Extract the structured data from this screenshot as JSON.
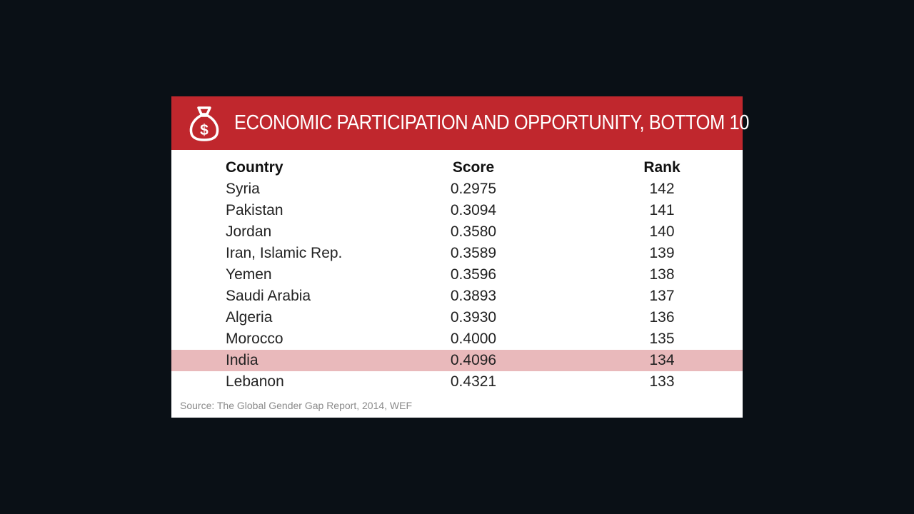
{
  "header": {
    "title": "ECONOMIC PARTICIPATION AND OPPORTUNITY, BOTTOM 10",
    "icon": "money-bag-dollar-icon",
    "background_color": "#c0272d"
  },
  "table": {
    "columns": [
      "Country",
      "Score",
      "Rank"
    ],
    "rows": [
      {
        "country": "Syria",
        "score": "0.2975",
        "rank": "142"
      },
      {
        "country": "Pakistan",
        "score": "0.3094",
        "rank": "141"
      },
      {
        "country": "Jordan",
        "score": "0.3580",
        "rank": "140"
      },
      {
        "country": "Iran, Islamic Rep.",
        "score": "0.3589",
        "rank": "139"
      },
      {
        "country": "Yemen",
        "score": "0.3596",
        "rank": "138"
      },
      {
        "country": "Saudi Arabia",
        "score": "0.3893",
        "rank": "137"
      },
      {
        "country": "Algeria",
        "score": "0.3930",
        "rank": "136"
      },
      {
        "country": "Morocco",
        "score": "0.4000",
        "rank": "135"
      },
      {
        "country": "India",
        "score": "0.4096",
        "rank": "134",
        "highlighted": true
      },
      {
        "country": "Lebanon",
        "score": "0.4321",
        "rank": "133"
      }
    ],
    "highlight_color": "#e9b9bb"
  },
  "source": "Source: The Global Gender Gap Report, 2014, WEF",
  "chart_data": {
    "type": "table",
    "title": "ECONOMIC PARTICIPATION AND OPPORTUNITY, BOTTOM 10",
    "columns": [
      "Country",
      "Score",
      "Rank"
    ],
    "rows": [
      [
        "Syria",
        0.2975,
        142
      ],
      [
        "Pakistan",
        0.3094,
        141
      ],
      [
        "Jordan",
        0.358,
        140
      ],
      [
        "Iran, Islamic Rep.",
        0.3589,
        139
      ],
      [
        "Yemen",
        0.3596,
        138
      ],
      [
        "Saudi Arabia",
        0.3893,
        137
      ],
      [
        "Algeria",
        0.393,
        136
      ],
      [
        "Morocco",
        0.4,
        135
      ],
      [
        "India",
        0.4096,
        134
      ],
      [
        "Lebanon",
        0.4321,
        133
      ]
    ],
    "highlighted_row": "India",
    "source": "Source: The Global Gender Gap Report, 2014, WEF"
  }
}
